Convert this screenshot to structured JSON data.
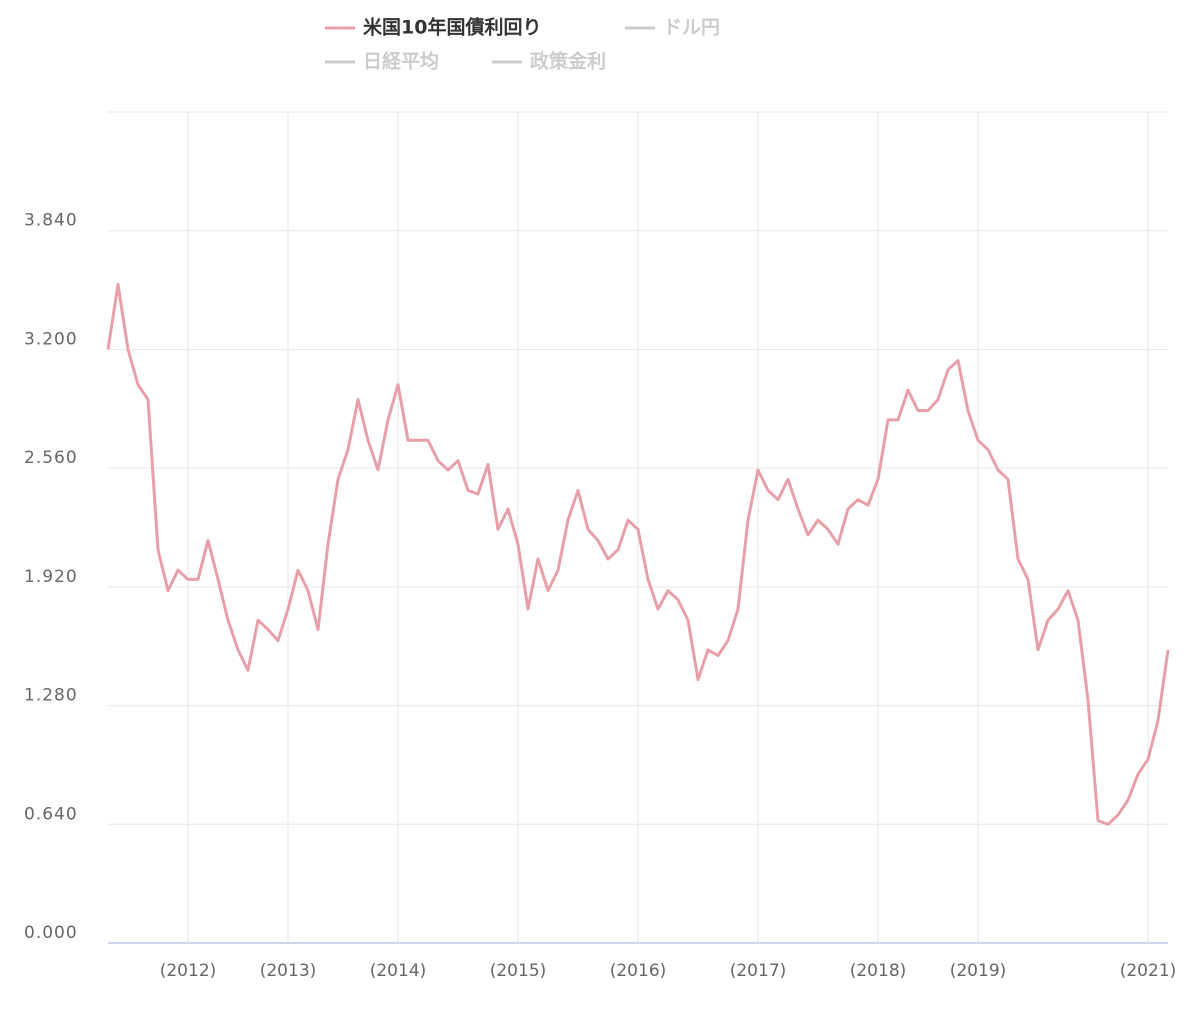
{
  "chart_data": {
    "type": "line",
    "categories": [
      null,
      null,
      null,
      null,
      null,
      null,
      null,
      null,
      "(2012)",
      null,
      null,
      null,
      null,
      null,
      null,
      null,
      null,
      null,
      "(2013)",
      null,
      null,
      null,
      null,
      null,
      null,
      null,
      null,
      null,
      null,
      "(2014)",
      null,
      null,
      null,
      null,
      null,
      null,
      null,
      null,
      null,
      null,
      null,
      "(2015)",
      null,
      null,
      null,
      null,
      null,
      null,
      null,
      null,
      null,
      null,
      null,
      "(2016)",
      null,
      null,
      null,
      null,
      null,
      null,
      null,
      null,
      null,
      null,
      null,
      "(2017)",
      null,
      null,
      null,
      null,
      null,
      null,
      null,
      null,
      null,
      null,
      null,
      "(2018)",
      null,
      null,
      null,
      null,
      null,
      null,
      null,
      null,
      null,
      "(2019)",
      null,
      null,
      null,
      null,
      null,
      null,
      null,
      null,
      null,
      null,
      null,
      null,
      null,
      null,
      null,
      null,
      "(2021)",
      null,
      null
    ],
    "series": [
      {
        "name": "米国10年国債利回り",
        "color": "#e8a0a8",
        "values": [
          3.2,
          3.55,
          3.2,
          3.01,
          2.93,
          2.12,
          1.9,
          2.01,
          1.96,
          1.96,
          2.17,
          1.96,
          1.74,
          1.58,
          1.47,
          1.74,
          1.69,
          1.63,
          1.8,
          2.01,
          1.9,
          1.69,
          2.15,
          2.5,
          2.66,
          2.93,
          2.71,
          2.55,
          2.82,
          3.01,
          2.71,
          2.71,
          2.71,
          2.6,
          2.55,
          2.6,
          2.44,
          2.42,
          2.58,
          2.23,
          2.34,
          2.15,
          1.8,
          2.07,
          1.9,
          2.01,
          2.28,
          2.44,
          2.23,
          2.17,
          2.07,
          2.12,
          2.28,
          2.23,
          1.96,
          1.8,
          1.9,
          1.85,
          1.74,
          1.42,
          1.58,
          1.55,
          1.63,
          1.8,
          2.28,
          2.55,
          2.44,
          2.39,
          2.5,
          2.34,
          2.2,
          2.28,
          2.23,
          2.15,
          2.34,
          2.39,
          2.36,
          2.5,
          2.82,
          2.82,
          2.98,
          2.87,
          2.87,
          2.93,
          3.09,
          3.14,
          2.87,
          2.71,
          2.66,
          2.55,
          2.5,
          2.07,
          1.96,
          1.58,
          1.74,
          1.8,
          1.9,
          1.74,
          1.31,
          0.66,
          0.64,
          0.69,
          0.77,
          0.91,
          0.99,
          1.2,
          1.58
        ]
      }
    ],
    "hidden_series": [
      "ドル円",
      "日経平均",
      "政策金利"
    ],
    "hidden_color": "#cccccc",
    "ylim": [
      0,
      4.48
    ],
    "yticks": [
      {
        "value": 0,
        "label": "0.000"
      },
      {
        "value": 0.64,
        "label": "0.640"
      },
      {
        "value": 1.28,
        "label": "1.280"
      },
      {
        "value": 1.92,
        "label": "1.920"
      },
      {
        "value": 2.56,
        "label": "2.560"
      },
      {
        "value": 3.2,
        "label": "3.200"
      },
      {
        "value": 3.84,
        "label": "3.840"
      }
    ],
    "grid": true
  }
}
